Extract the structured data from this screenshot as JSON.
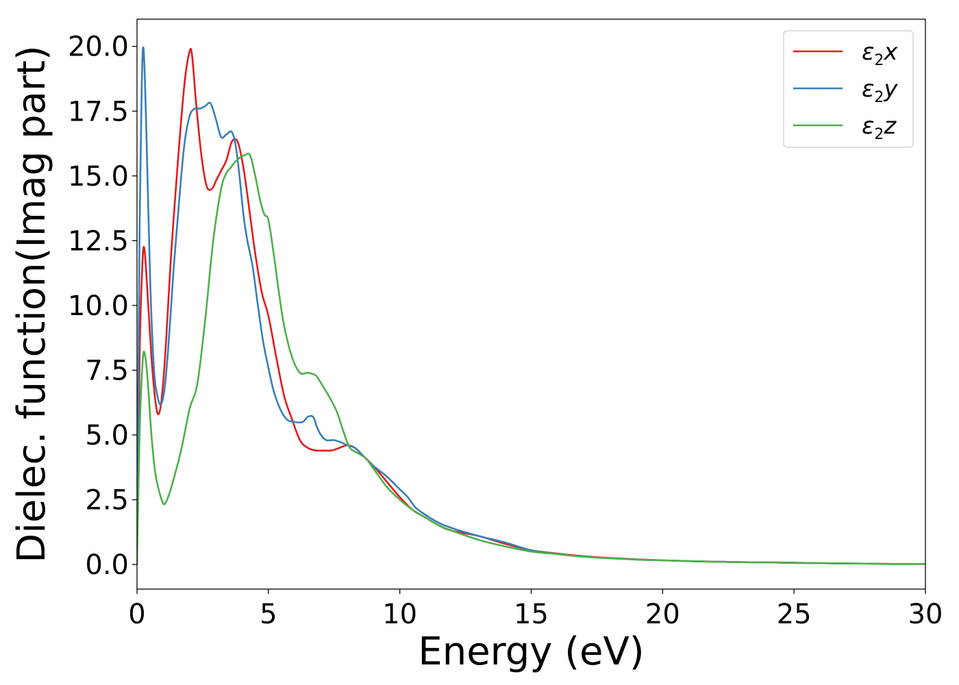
{
  "chart_data": {
    "type": "line",
    "title": "",
    "xlabel": "Energy (eV)",
    "ylabel": "Dielec. function(Imag part)",
    "xlim": [
      0,
      30
    ],
    "ylim": [
      -0.95,
      21.05
    ],
    "xticks": [
      0,
      5,
      10,
      15,
      20,
      25,
      30
    ],
    "xtick_labels": [
      "0",
      "5",
      "10",
      "15",
      "20",
      "25",
      "30"
    ],
    "yticks": [
      0,
      2.5,
      5,
      7.5,
      10,
      12.5,
      15,
      17.5,
      20
    ],
    "ytick_labels": [
      "0.0",
      "2.5",
      "5.0",
      "7.5",
      "10.0",
      "12.5",
      "15.0",
      "17.5",
      "20.0"
    ],
    "grid": false,
    "legend_position": "top-right",
    "series": [
      {
        "name": "ε2x",
        "legend_base": "ε",
        "legend_sub": "2",
        "legend_suffix": "x",
        "color": "#e41a1c",
        "x": [
          0,
          0.1,
          0.2,
          0.28,
          0.4,
          0.55,
          0.7,
          0.82,
          0.95,
          1.1,
          1.3,
          1.55,
          1.8,
          2.0,
          2.1,
          2.25,
          2.45,
          2.65,
          2.85,
          3.0,
          3.2,
          3.4,
          3.6,
          3.78,
          3.92,
          4.1,
          4.3,
          4.5,
          4.75,
          5.0,
          5.3,
          5.6,
          5.9,
          6.2,
          6.5,
          6.8,
          7.1,
          7.4,
          7.7,
          8.0,
          8.3,
          8.6,
          9.0,
          9.5,
          10.0,
          10.5,
          11.0,
          11.5,
          12.0,
          13.0,
          14.0,
          15.0,
          16.0,
          17.0,
          18.0,
          19.0,
          20.0,
          21.0,
          22.0,
          23.0,
          24.0,
          25.0,
          26.0,
          27.0,
          28.0,
          29.0,
          30.0
        ],
        "y": [
          0.0,
          8.0,
          11.5,
          12.2,
          10.5,
          8.0,
          6.3,
          5.8,
          6.5,
          8.5,
          12.0,
          15.5,
          18.5,
          19.8,
          19.6,
          17.8,
          15.8,
          14.6,
          14.5,
          14.8,
          15.2,
          15.6,
          16.3,
          16.4,
          16.0,
          15.0,
          13.5,
          12.0,
          10.5,
          9.6,
          8.0,
          6.5,
          5.6,
          4.8,
          4.5,
          4.4,
          4.4,
          4.4,
          4.5,
          4.6,
          4.5,
          4.2,
          3.8,
          3.2,
          2.6,
          2.1,
          1.8,
          1.5,
          1.3,
          1.1,
          0.8,
          0.55,
          0.42,
          0.32,
          0.25,
          0.2,
          0.16,
          0.13,
          0.11,
          0.09,
          0.08,
          0.07,
          0.05,
          0.04,
          0.03,
          0.02,
          0.02
        ]
      },
      {
        "name": "ε2y",
        "legend_base": "ε",
        "legend_sub": "2",
        "legend_suffix": "y",
        "color": "#377eb8",
        "x": [
          0,
          0.1,
          0.18,
          0.25,
          0.35,
          0.5,
          0.65,
          0.8,
          0.92,
          1.05,
          1.2,
          1.4,
          1.6,
          1.8,
          2.0,
          2.2,
          2.4,
          2.6,
          2.8,
          3.0,
          3.2,
          3.4,
          3.6,
          3.75,
          3.9,
          4.05,
          4.2,
          4.4,
          4.6,
          4.8,
          5.0,
          5.2,
          5.45,
          5.7,
          6.0,
          6.3,
          6.5,
          6.7,
          6.85,
          7.0,
          7.2,
          7.5,
          7.8,
          8.0,
          8.3,
          8.6,
          9.0,
          9.5,
          10.0,
          10.3,
          10.6,
          11.0,
          11.5,
          12.0,
          13.0,
          14.0,
          15.0,
          16.0,
          17.0,
          18.0,
          19.0,
          20.0,
          21.0,
          22.0,
          23.0,
          24.0,
          25.0,
          26.0,
          27.0,
          28.0,
          29.0,
          30.0
        ],
        "y": [
          0.0,
          13.0,
          18.5,
          19.9,
          17.0,
          11.0,
          7.5,
          6.4,
          6.2,
          6.8,
          8.5,
          11.5,
          14.0,
          16.2,
          17.3,
          17.6,
          17.6,
          17.7,
          17.8,
          17.2,
          16.5,
          16.6,
          16.7,
          16.2,
          15.0,
          13.5,
          12.5,
          11.5,
          10.0,
          8.6,
          7.6,
          6.7,
          6.0,
          5.6,
          5.5,
          5.5,
          5.7,
          5.7,
          5.3,
          5.0,
          4.8,
          4.8,
          4.7,
          4.6,
          4.5,
          4.2,
          3.8,
          3.4,
          2.9,
          2.6,
          2.2,
          1.9,
          1.6,
          1.4,
          1.1,
          0.85,
          0.55,
          0.4,
          0.3,
          0.24,
          0.19,
          0.16,
          0.13,
          0.11,
          0.09,
          0.08,
          0.06,
          0.05,
          0.04,
          0.03,
          0.02,
          0.02
        ]
      },
      {
        "name": "ε2z",
        "legend_base": "ε",
        "legend_sub": "2",
        "legend_suffix": "z",
        "color": "#4daf4a",
        "x": [
          0,
          0.1,
          0.2,
          0.28,
          0.4,
          0.55,
          0.7,
          0.85,
          1.0,
          1.1,
          1.25,
          1.45,
          1.7,
          2.0,
          2.3,
          2.6,
          2.9,
          3.2,
          3.4,
          3.55,
          3.7,
          3.9,
          4.1,
          4.3,
          4.5,
          4.7,
          4.85,
          5.0,
          5.2,
          5.4,
          5.6,
          5.9,
          6.2,
          6.5,
          6.8,
          7.0,
          7.3,
          7.6,
          7.9,
          8.1,
          8.4,
          8.7,
          9.0,
          9.5,
          10.0,
          10.5,
          11.0,
          11.5,
          12.0,
          13.0,
          14.0,
          15.0,
          16.0,
          17.0,
          18.0,
          19.0,
          20.0,
          21.0,
          22.0,
          23.0,
          24.0,
          25.0,
          26.0,
          27.0,
          28.0,
          29.0,
          30.0
        ],
        "y": [
          0.0,
          5.0,
          7.6,
          8.2,
          7.2,
          5.0,
          3.5,
          2.8,
          2.35,
          2.4,
          2.8,
          3.5,
          4.5,
          6.0,
          7.0,
          9.5,
          12.5,
          14.5,
          15.1,
          15.3,
          15.5,
          15.7,
          15.8,
          15.8,
          15.0,
          14.0,
          13.5,
          13.3,
          12.0,
          10.5,
          9.2,
          8.0,
          7.4,
          7.4,
          7.3,
          7.0,
          6.5,
          5.9,
          5.0,
          4.5,
          4.3,
          4.1,
          3.7,
          3.0,
          2.5,
          2.1,
          1.8,
          1.5,
          1.3,
          0.95,
          0.7,
          0.5,
          0.4,
          0.3,
          0.24,
          0.19,
          0.16,
          0.13,
          0.11,
          0.09,
          0.08,
          0.06,
          0.05,
          0.04,
          0.03,
          0.02,
          0.02
        ]
      }
    ]
  }
}
